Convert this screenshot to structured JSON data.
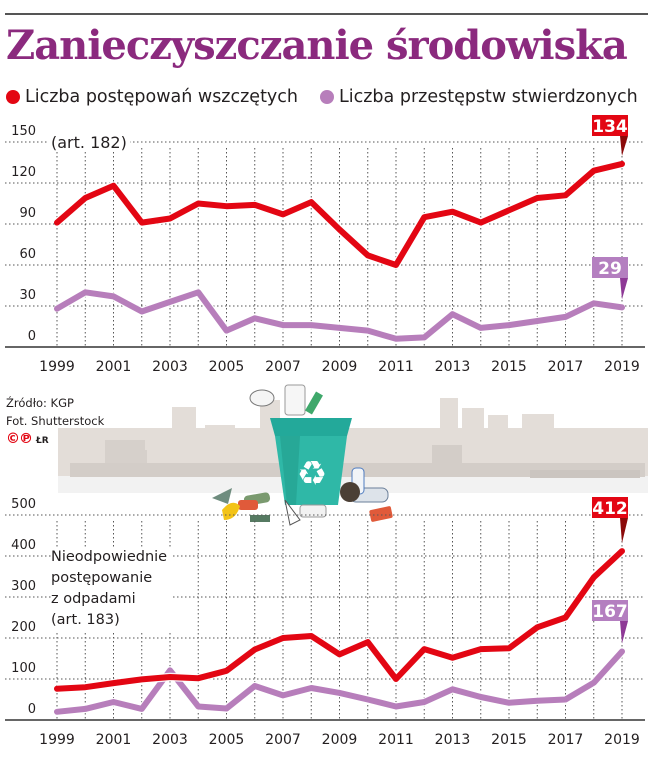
{
  "header": {
    "title": "Zanieczyszczanie środowiska"
  },
  "legend": [
    {
      "label": "Liczba postępowań wszczętych",
      "color": "#e30613"
    },
    {
      "label": "Liczba przestępstw stwierdzonych",
      "color": "#b77ebb"
    }
  ],
  "colors": {
    "red": "#e30613",
    "red_dark": "#8b0a0a",
    "purple": "#b77ebb",
    "purple_badge": "#b47fc0",
    "purple_dark": "#8e3996",
    "title": "#8b2a7e",
    "grid": "#555555"
  },
  "credits": {
    "source": "Źródło: KGP",
    "photo": "Fot. Shutterstock",
    "copyright": "©℗",
    "author": "ŁR"
  },
  "chart_data": [
    {
      "type": "line",
      "title": "Zanieczyszczanie środowiska",
      "subtitle": "(art. 182)",
      "x": [
        1999,
        2000,
        2001,
        2002,
        2003,
        2004,
        2005,
        2006,
        2007,
        2008,
        2009,
        2010,
        2011,
        2012,
        2013,
        2014,
        2015,
        2016,
        2017,
        2018,
        2019
      ],
      "x_tick_labels": [
        "1999",
        "2001",
        "2003",
        "2005",
        "2007",
        "2009",
        "2011",
        "2013",
        "2015",
        "2017",
        "2019"
      ],
      "y_ticks": [
        0,
        30,
        60,
        90,
        120,
        150
      ],
      "ylim": [
        0,
        150
      ],
      "grid": true,
      "legend_position": "top",
      "series": [
        {
          "name": "Liczba postępowań wszczętych",
          "color": "#e30613",
          "values": [
            91,
            109,
            118,
            91,
            94,
            105,
            103,
            104,
            97,
            106,
            86,
            67,
            60,
            95,
            99,
            91,
            100,
            109,
            111,
            129,
            134
          ],
          "end_label": "134"
        },
        {
          "name": "Liczba przestępstw stwierdzonych",
          "color": "#b77ebb",
          "values": [
            28,
            40,
            37,
            26,
            33,
            40,
            12,
            21,
            16,
            16,
            14,
            12,
            6,
            7,
            24,
            14,
            16,
            19,
            22,
            32,
            29
          ],
          "end_label": "29"
        }
      ]
    },
    {
      "type": "line",
      "title": "Nieodpowiednie postępowanie z odpadami",
      "subtitle": "(art. 183)",
      "x": [
        1999,
        2000,
        2001,
        2002,
        2003,
        2004,
        2005,
        2006,
        2007,
        2008,
        2009,
        2010,
        2011,
        2012,
        2013,
        2014,
        2015,
        2016,
        2017,
        2018,
        2019
      ],
      "x_tick_labels": [
        "1999",
        "2001",
        "2003",
        "2005",
        "2007",
        "2009",
        "2011",
        "2013",
        "2015",
        "2017",
        "2019"
      ],
      "y_ticks": [
        0,
        100,
        200,
        300,
        400,
        500
      ],
      "ylim": [
        0,
        500
      ],
      "grid": true,
      "series": [
        {
          "name": "Liczba postępowań wszczętych",
          "color": "#e30613",
          "values": [
            76,
            80,
            90,
            99,
            105,
            102,
            120,
            172,
            200,
            205,
            160,
            190,
            100,
            173,
            152,
            173,
            175,
            226,
            250,
            348,
            412
          ],
          "end_label": "412"
        },
        {
          "name": "Liczba przestępstw stwierdzonych",
          "color": "#b77ebb",
          "values": [
            20,
            27,
            44,
            27,
            121,
            33,
            28,
            83,
            60,
            78,
            66,
            50,
            33,
            44,
            75,
            56,
            42,
            47,
            50,
            91,
            167
          ],
          "end_label": "167"
        }
      ]
    }
  ],
  "notes": {
    "top_label": "(art. 182)",
    "bottom_label_lines": [
      "Nieodpowiednie",
      "postępowanie",
      "z odpadami",
      "(art. 183)"
    ]
  },
  "illustration": {
    "icon": "recycling-bin-overflowing-icon",
    "symbol": "♻"
  }
}
